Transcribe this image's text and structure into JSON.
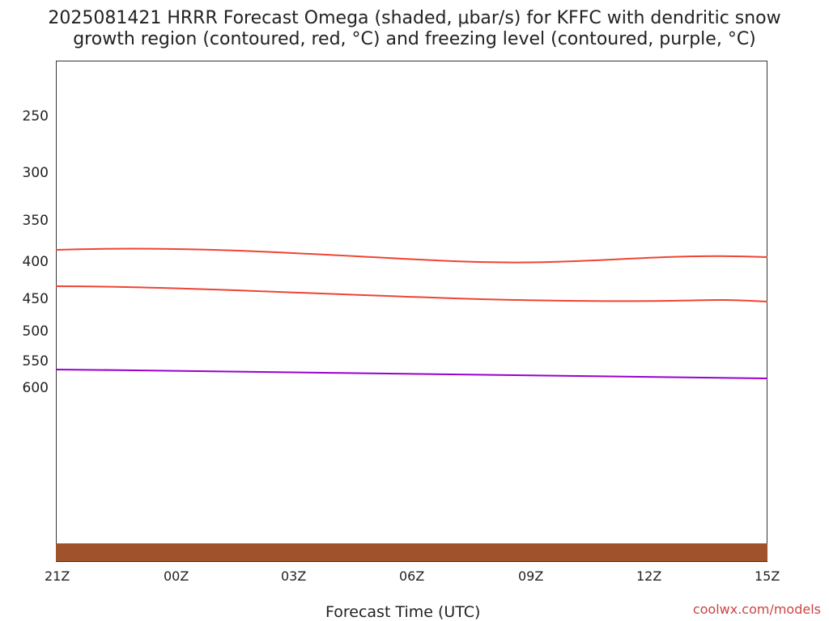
{
  "title": [
    "2025081421 HRRR Forecast Omega (shaded, μbar/s) for KFFC with dendritic snow",
    "growth region (contoured, red, °C) and freezing level (contoured, purple, °C)"
  ],
  "chart_data": {
    "type": "heatmap",
    "xlabel": "Forecast Time (UTC)",
    "y_ticks": [
      "250",
      "300",
      "350",
      "400",
      "450",
      "500",
      "550",
      "600"
    ],
    "x_ticks": [
      "21Z",
      "00Z",
      "03Z",
      "06Z",
      "09Z",
      "12Z",
      "15Z"
    ]
  },
  "credit": "coolwx.com/models"
}
